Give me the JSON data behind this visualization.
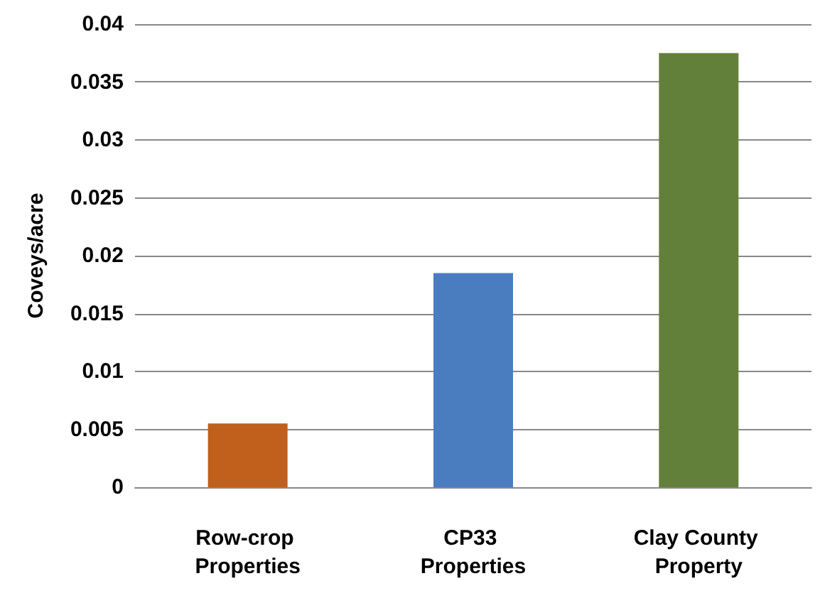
{
  "chart_data": {
    "type": "bar",
    "ylabel": "Coveys/acre",
    "categories": [
      "Row-crop Properties",
      "CP33 Properties",
      "Clay County Property"
    ],
    "values": [
      0.0055,
      0.0185,
      0.0375
    ],
    "colors": [
      "#c0601c",
      "#4a7cc0",
      "#63803a"
    ],
    "ylim": [
      0,
      0.04
    ],
    "yticks": [
      0,
      0.005,
      0.01,
      0.015,
      0.02,
      0.025,
      0.03,
      0.035,
      0.04
    ],
    "grid": "y"
  }
}
